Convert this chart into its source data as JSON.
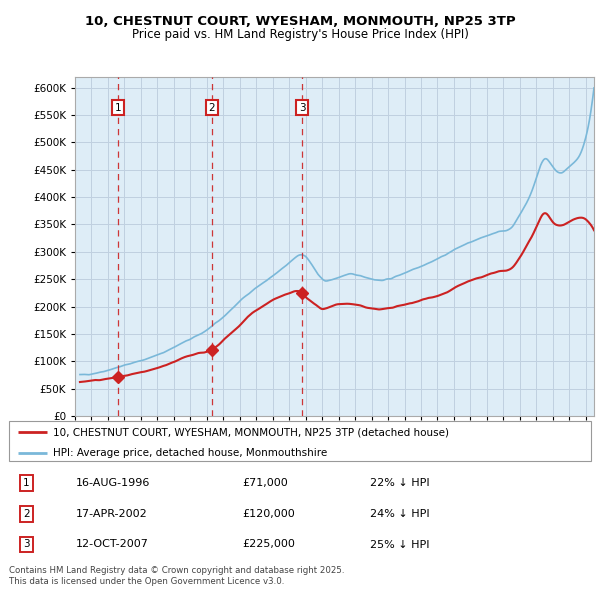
{
  "title_line1": "10, CHESTNUT COURT, WYESHAM, MONMOUTH, NP25 3TP",
  "title_line2": "Price paid vs. HM Land Registry's House Price Index (HPI)",
  "hpi_color": "#7ab8d9",
  "price_color": "#cc2222",
  "bg_color": "#deedf7",
  "grid_color": "#c0d0e0",
  "ylim": [
    0,
    620000
  ],
  "yticks": [
    0,
    50000,
    100000,
    150000,
    200000,
    250000,
    300000,
    350000,
    400000,
    450000,
    500000,
    550000,
    600000
  ],
  "transaction_dates": [
    1996.62,
    2002.29,
    2007.79
  ],
  "transaction_prices": [
    71000,
    120000,
    225000
  ],
  "transaction_labels": [
    "1",
    "2",
    "3"
  ],
  "transaction_info": [
    {
      "num": "1",
      "date": "16-AUG-1996",
      "price": "£71,000",
      "hpi": "22% ↓ HPI"
    },
    {
      "num": "2",
      "date": "17-APR-2002",
      "price": "£120,000",
      "hpi": "24% ↓ HPI"
    },
    {
      "num": "3",
      "date": "12-OCT-2007",
      "price": "£225,000",
      "hpi": "25% ↓ HPI"
    }
  ],
  "legend_line1": "10, CHESTNUT COURT, WYESHAM, MONMOUTH, NP25 3TP (detached house)",
  "legend_line2": "HPI: Average price, detached house, Monmouthshire",
  "footer": "Contains HM Land Registry data © Crown copyright and database right 2025.\nThis data is licensed under the Open Government Licence v3.0.",
  "xmin": 1994.3,
  "xmax": 2025.5,
  "hpi_keypoints_x": [
    1994.3,
    1995.5,
    1996.5,
    1997.5,
    1998.5,
    1999.5,
    2000.5,
    2001.5,
    2002.5,
    2003.5,
    2004.5,
    2005.5,
    2006.5,
    2007.2,
    2007.8,
    2008.5,
    2009.0,
    2009.5,
    2010.5,
    2011.5,
    2012.5,
    2013.5,
    2014.5,
    2015.5,
    2016.5,
    2017.3,
    2017.8,
    2018.5,
    2019.5,
    2020.0,
    2020.5,
    2021.0,
    2021.5,
    2022.0,
    2022.5,
    2023.0,
    2023.5,
    2024.0,
    2024.5,
    2025.3
  ],
  "hpi_keypoints_y": [
    75000,
    80000,
    88000,
    97000,
    106000,
    118000,
    133000,
    148000,
    168000,
    195000,
    223000,
    245000,
    267000,
    285000,
    295000,
    270000,
    250000,
    248000,
    258000,
    255000,
    248000,
    255000,
    268000,
    280000,
    295000,
    308000,
    315000,
    323000,
    335000,
    338000,
    345000,
    368000,
    395000,
    435000,
    470000,
    455000,
    445000,
    455000,
    470000,
    555000
  ],
  "price_keypoints_x": [
    1994.3,
    1995.5,
    1996.0,
    1996.62,
    1997.5,
    1998.5,
    1999.5,
    2000.5,
    2001.5,
    2002.29,
    2003.0,
    2003.5,
    2004.0,
    2004.5,
    2005.0,
    2005.5,
    2006.0,
    2006.5,
    2007.0,
    2007.5,
    2007.79,
    2008.0,
    2008.5,
    2009.0,
    2009.5,
    2010.5,
    2011.5,
    2012.5,
    2013.5,
    2014.5,
    2015.5,
    2016.5,
    2017.3,
    2017.8,
    2018.5,
    2019.5,
    2020.0,
    2020.5,
    2021.0,
    2021.5,
    2022.0,
    2022.5,
    2023.0,
    2023.5,
    2024.0,
    2024.5,
    2025.3
  ],
  "price_keypoints_y": [
    62000,
    66000,
    68000,
    71000,
    76000,
    83000,
    93000,
    105000,
    115000,
    120000,
    138000,
    152000,
    165000,
    182000,
    193000,
    202000,
    212000,
    218000,
    224000,
    228000,
    225000,
    218000,
    205000,
    196000,
    200000,
    205000,
    200000,
    195000,
    200000,
    207000,
    216000,
    225000,
    238000,
    245000,
    252000,
    262000,
    265000,
    270000,
    290000,
    315000,
    345000,
    370000,
    355000,
    348000,
    355000,
    362000,
    350000
  ]
}
